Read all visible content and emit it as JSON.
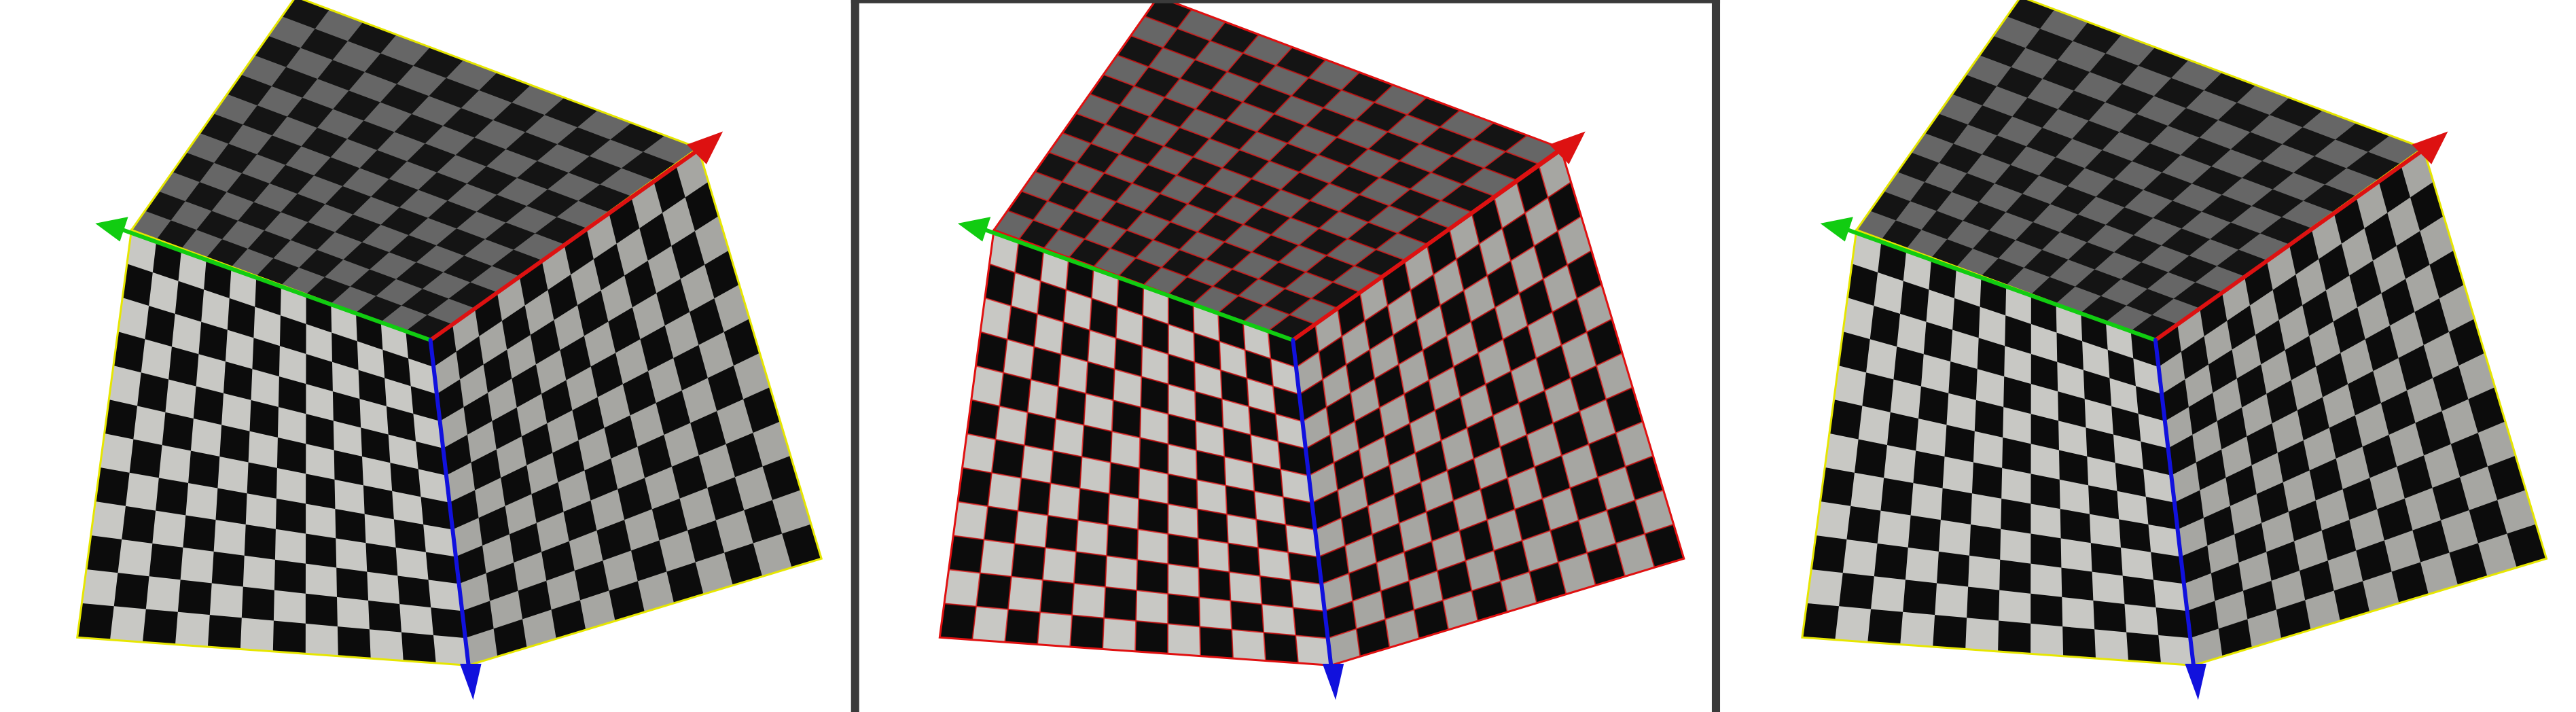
{
  "viewports": [
    {
      "id": "left",
      "selected": false,
      "outline_color": "#e6e600",
      "grid_lines": false
    },
    {
      "id": "center",
      "selected": true,
      "outline_color": "#e01010",
      "grid_lines": true
    },
    {
      "id": "right",
      "selected": false,
      "outline_color": "#e6e600",
      "grid_lines": false
    }
  ],
  "faces": {
    "top": {
      "dark": "#141414",
      "light": "#666666",
      "squares": 12
    },
    "left": {
      "dark": "#0c0c0c",
      "light": "#c8c8c4",
      "squares": 12
    },
    "right": {
      "dark": "#0c0c0c",
      "light": "#a6a6a2",
      "squares": 12
    }
  },
  "axes": {
    "x": {
      "color": "#dd1111",
      "icon": "x-axis-arrow-icon"
    },
    "y": {
      "color": "#11cc11",
      "icon": "y-axis-arrow-icon"
    },
    "z": {
      "color": "#1111dd",
      "icon": "z-axis-arrow-icon"
    }
  },
  "selection_frame": {
    "color": "#3a3a3a"
  }
}
